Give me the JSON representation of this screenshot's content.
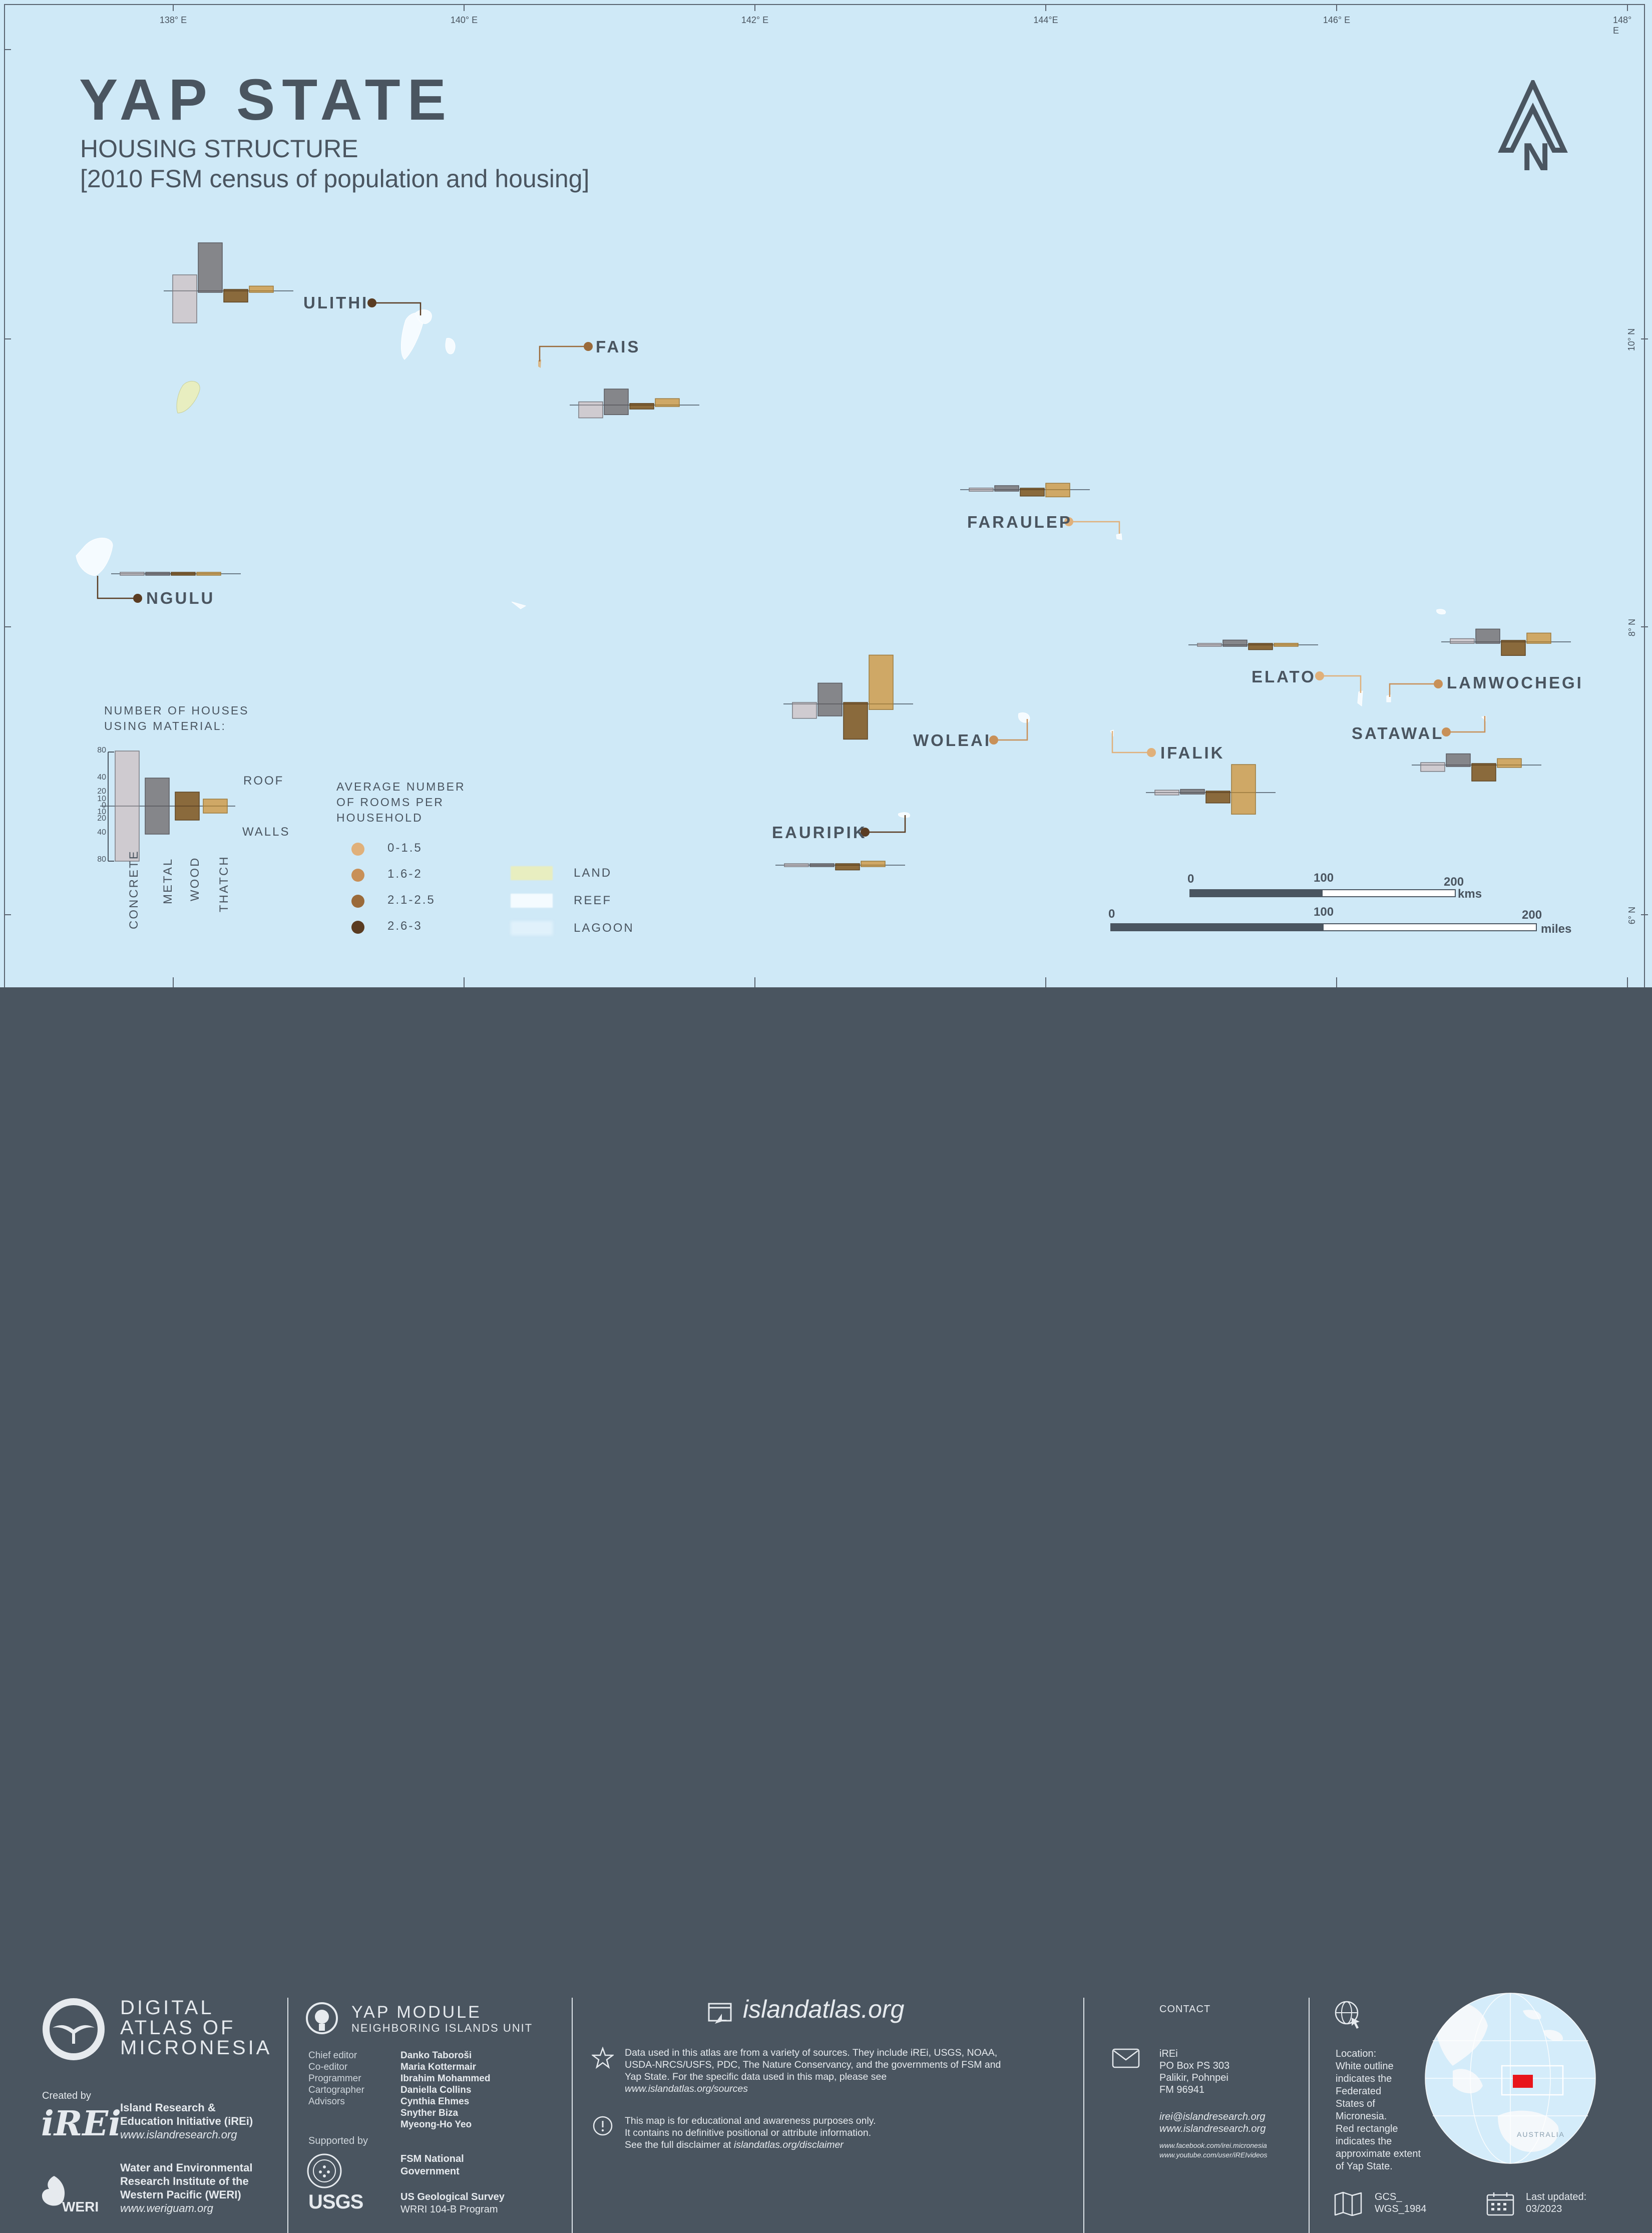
{
  "map": {
    "title": "YAP STATE",
    "subtitle": "HOUSING STRUCTURE",
    "source_line": "[2010 FSM census of population and housing]",
    "north_label": "N",
    "longitude_labels": [
      "138° E",
      "140° E",
      "142° E",
      "144°E",
      "146° E",
      "148° E"
    ],
    "latitude_labels": [
      "10° N",
      "8° N",
      "6° N"
    ],
    "islands": [
      {
        "name": "ULITHI",
        "rooms_class": "2.6-3",
        "roof": {
          "concrete": 20,
          "metal": 60,
          "wood": 0,
          "thatch": 6
        },
        "walls": {
          "concrete": 40,
          "metal": 0,
          "wood": 14,
          "thatch": 0
        }
      },
      {
        "name": "FAIS",
        "rooms_class": "2.1-2.5",
        "roof": {
          "concrete": 4,
          "metal": 20,
          "wood": 2,
          "thatch": 8
        },
        "walls": {
          "concrete": 16,
          "metal": 12,
          "wood": 5,
          "thatch": 0
        }
      },
      {
        "name": "FARAULEP",
        "rooms_class": "0-1.5",
        "roof": {
          "concrete": 2,
          "metal": 5,
          "wood": 0,
          "thatch": 8
        },
        "walls": {
          "concrete": 2,
          "metal": 0,
          "wood": 8,
          "thatch": 9
        }
      },
      {
        "name": "NGULU",
        "rooms_class": "2.6-3",
        "roof": {
          "concrete": 0,
          "metal": 1,
          "wood": 0,
          "thatch": 0
        },
        "walls": {
          "concrete": 1,
          "metal": 0,
          "wood": 1,
          "thatch": 0
        }
      },
      {
        "name": "WOLEAI",
        "rooms_class": "1.6-2",
        "roof": {
          "concrete": 0,
          "metal": 26,
          "wood": 0,
          "thatch": 61
        },
        "walls": {
          "concrete": 18,
          "metal": 15,
          "wood": 44,
          "thatch": 7
        }
      },
      {
        "name": "EAURIPIK",
        "rooms_class": "2.6-3",
        "roof": {
          "concrete": 0,
          "metal": 1,
          "wood": 0,
          "thatch": 5
        },
        "walls": {
          "concrete": 1,
          "metal": 1,
          "wood": 6,
          "thatch": 0
        }
      },
      {
        "name": "ELATO",
        "rooms_class": "0-1.5",
        "roof": {
          "concrete": 0,
          "metal": 6,
          "wood": 0,
          "thatch": 2
        },
        "walls": {
          "concrete": 1,
          "metal": 0,
          "wood": 6,
          "thatch": 1
        }
      },
      {
        "name": "LAMWOCHEGI",
        "rooms_class": "1.6-2",
        "roof": {
          "concrete": 4,
          "metal": 16,
          "wood": 0,
          "thatch": 11
        },
        "walls": {
          "concrete": 2,
          "metal": 0,
          "wood": 17,
          "thatch": 0
        }
      },
      {
        "name": "IFALIK",
        "rooms_class": "0-1.5",
        "roof": {
          "concrete": 3,
          "metal": 4,
          "wood": 0,
          "thatch": 35
        },
        "walls": {
          "concrete": 3,
          "metal": 1,
          "wood": 13,
          "thatch": 27
        }
      },
      {
        "name": "SATAWAL",
        "rooms_class": "1.6-2",
        "roof": {
          "concrete": 3,
          "metal": 14,
          "wood": 0,
          "thatch": 8
        },
        "walls": {
          "concrete": 8,
          "metal": 0,
          "wood": 20,
          "thatch": 3
        }
      }
    ],
    "legend": {
      "houses_title_line1": "NUMBER OF HOUSES",
      "houses_title_line2": "USING MATERIAL:",
      "axis_ticks": [
        "80",
        "40",
        "20",
        "10",
        "0",
        "10",
        "20",
        "40",
        "80"
      ],
      "roof_label": "ROOF",
      "walls_label": "WALLS",
      "materials": [
        "CONCRETE",
        "METAL",
        "WOOD",
        "THATCH"
      ],
      "rooms_title_line1": "AVERAGE NUMBER",
      "rooms_title_line2": "OF ROOMS PER",
      "rooms_title_line3": "HOUSEHOLD",
      "room_classes": [
        {
          "label": "0-1.5",
          "color": "#e0b07a"
        },
        {
          "label": "1.6-2",
          "color": "#c89058"
        },
        {
          "label": "2.1-2.5",
          "color": "#9a6a3a"
        },
        {
          "label": "2.6-3",
          "color": "#5a3c22"
        }
      ],
      "land_label": "LAND",
      "reef_label": "REEF",
      "lagoon_label": "LAGOON"
    },
    "scale_km": {
      "zero": "0",
      "mid": "100",
      "max": "200",
      "unit": "kms"
    },
    "scale_miles": {
      "zero": "0",
      "mid": "100",
      "max": "200",
      "unit": "miles"
    },
    "colors": {
      "ocean": "#cfe9f7",
      "concrete": "#cfcbd0",
      "metal": "#85868a",
      "wood": "#8a6a3c",
      "thatch": "#cfa866",
      "land": "#e8eec0",
      "reef": "#f4fbff",
      "footer": "#4a5560"
    }
  },
  "footer": {
    "atlas_name_line1": "DIGITAL",
    "atlas_name_line2": "ATLAS OF",
    "atlas_name_line3": "MICRONESIA",
    "created_by": "Created by",
    "irei_logo": "iREi",
    "irei_name_line1": "Island Research &",
    "irei_name_line2": "Education Initiative (iREi)",
    "irei_url": "www.islandresearch.org",
    "weri_name_line1": "Water and Environmental",
    "weri_name_line2": "Research Institute of the",
    "weri_name_line3": "Western Pacific (WERI)",
    "weri_url": "www.weriguam.org",
    "weri_logo": "WERI",
    "module_title": "YAP MODULE",
    "module_subtitle": "NEIGHBORING ISLANDS UNIT",
    "roles": [
      "Chief editor",
      "Co-editor",
      "Programmer",
      "Cartographer",
      "Advisors"
    ],
    "people": [
      "Danko Taboroši",
      "Maria Kottermair",
      "Ibrahim Mohammed",
      "Daniella Collins",
      "Cynthia Ehmes",
      "Snyther Biza",
      "Myeong-Ho Yeo"
    ],
    "supported_by": "Supported by",
    "sponsor1_line1": "FSM National",
    "sponsor1_line2": "Government",
    "sponsor2_line1": "US Geological Survey",
    "sponsor2_line2": "WRRI 104-B Program",
    "usgs_logo": "USGS",
    "site": "islandatlas.org",
    "data_note_line1": "Data used in this atlas are from a variety of sources. They include iREi, USGS, NOAA,",
    "data_note_line2": "USDA-NRCS/USFS, PDC, The Nature Conservancy, and the governments of FSM and",
    "data_note_line3": "Yap State. For the specific data used in this map, please see",
    "data_note_line4": "www.islandatlas.org/sources",
    "disclaimer_line1": "This map is for educational and awareness purposes only.",
    "disclaimer_line2": "It contains no definitive positional or attribute information.",
    "disclaimer_line3": "See the full disclaimer at ",
    "disclaimer_url": "islandatlas.org/disclaimer",
    "contact_title": "CONTACT",
    "contact_org": "iREi",
    "contact_address1": "PO Box PS 303",
    "contact_address2": "Palikir, Pohnpei",
    "contact_address3": "FM 96941",
    "contact_email": "irei@islandresearch.org",
    "contact_web": "www.islandresearch.org",
    "contact_fb": "www.facebook.com/irei.micronesia",
    "contact_yt": "www.youtube.com/user/iREIvideos",
    "location_line1": "Location:",
    "location_line2": "White outline",
    "location_line3": "indicates the",
    "location_line4": "Federated",
    "location_line5": "States of",
    "location_line6": "Micronesia.",
    "location_line7": "Red rectangle",
    "location_line8": "indicates the",
    "location_line9": "approximate extent",
    "location_line10": "of Yap State.",
    "globe_label": "AUSTRALIA",
    "projection_line1": "GCS_",
    "projection_line2": "WGS_1984",
    "updated_line1": "Last updated:",
    "updated_line2": "03/2023"
  }
}
